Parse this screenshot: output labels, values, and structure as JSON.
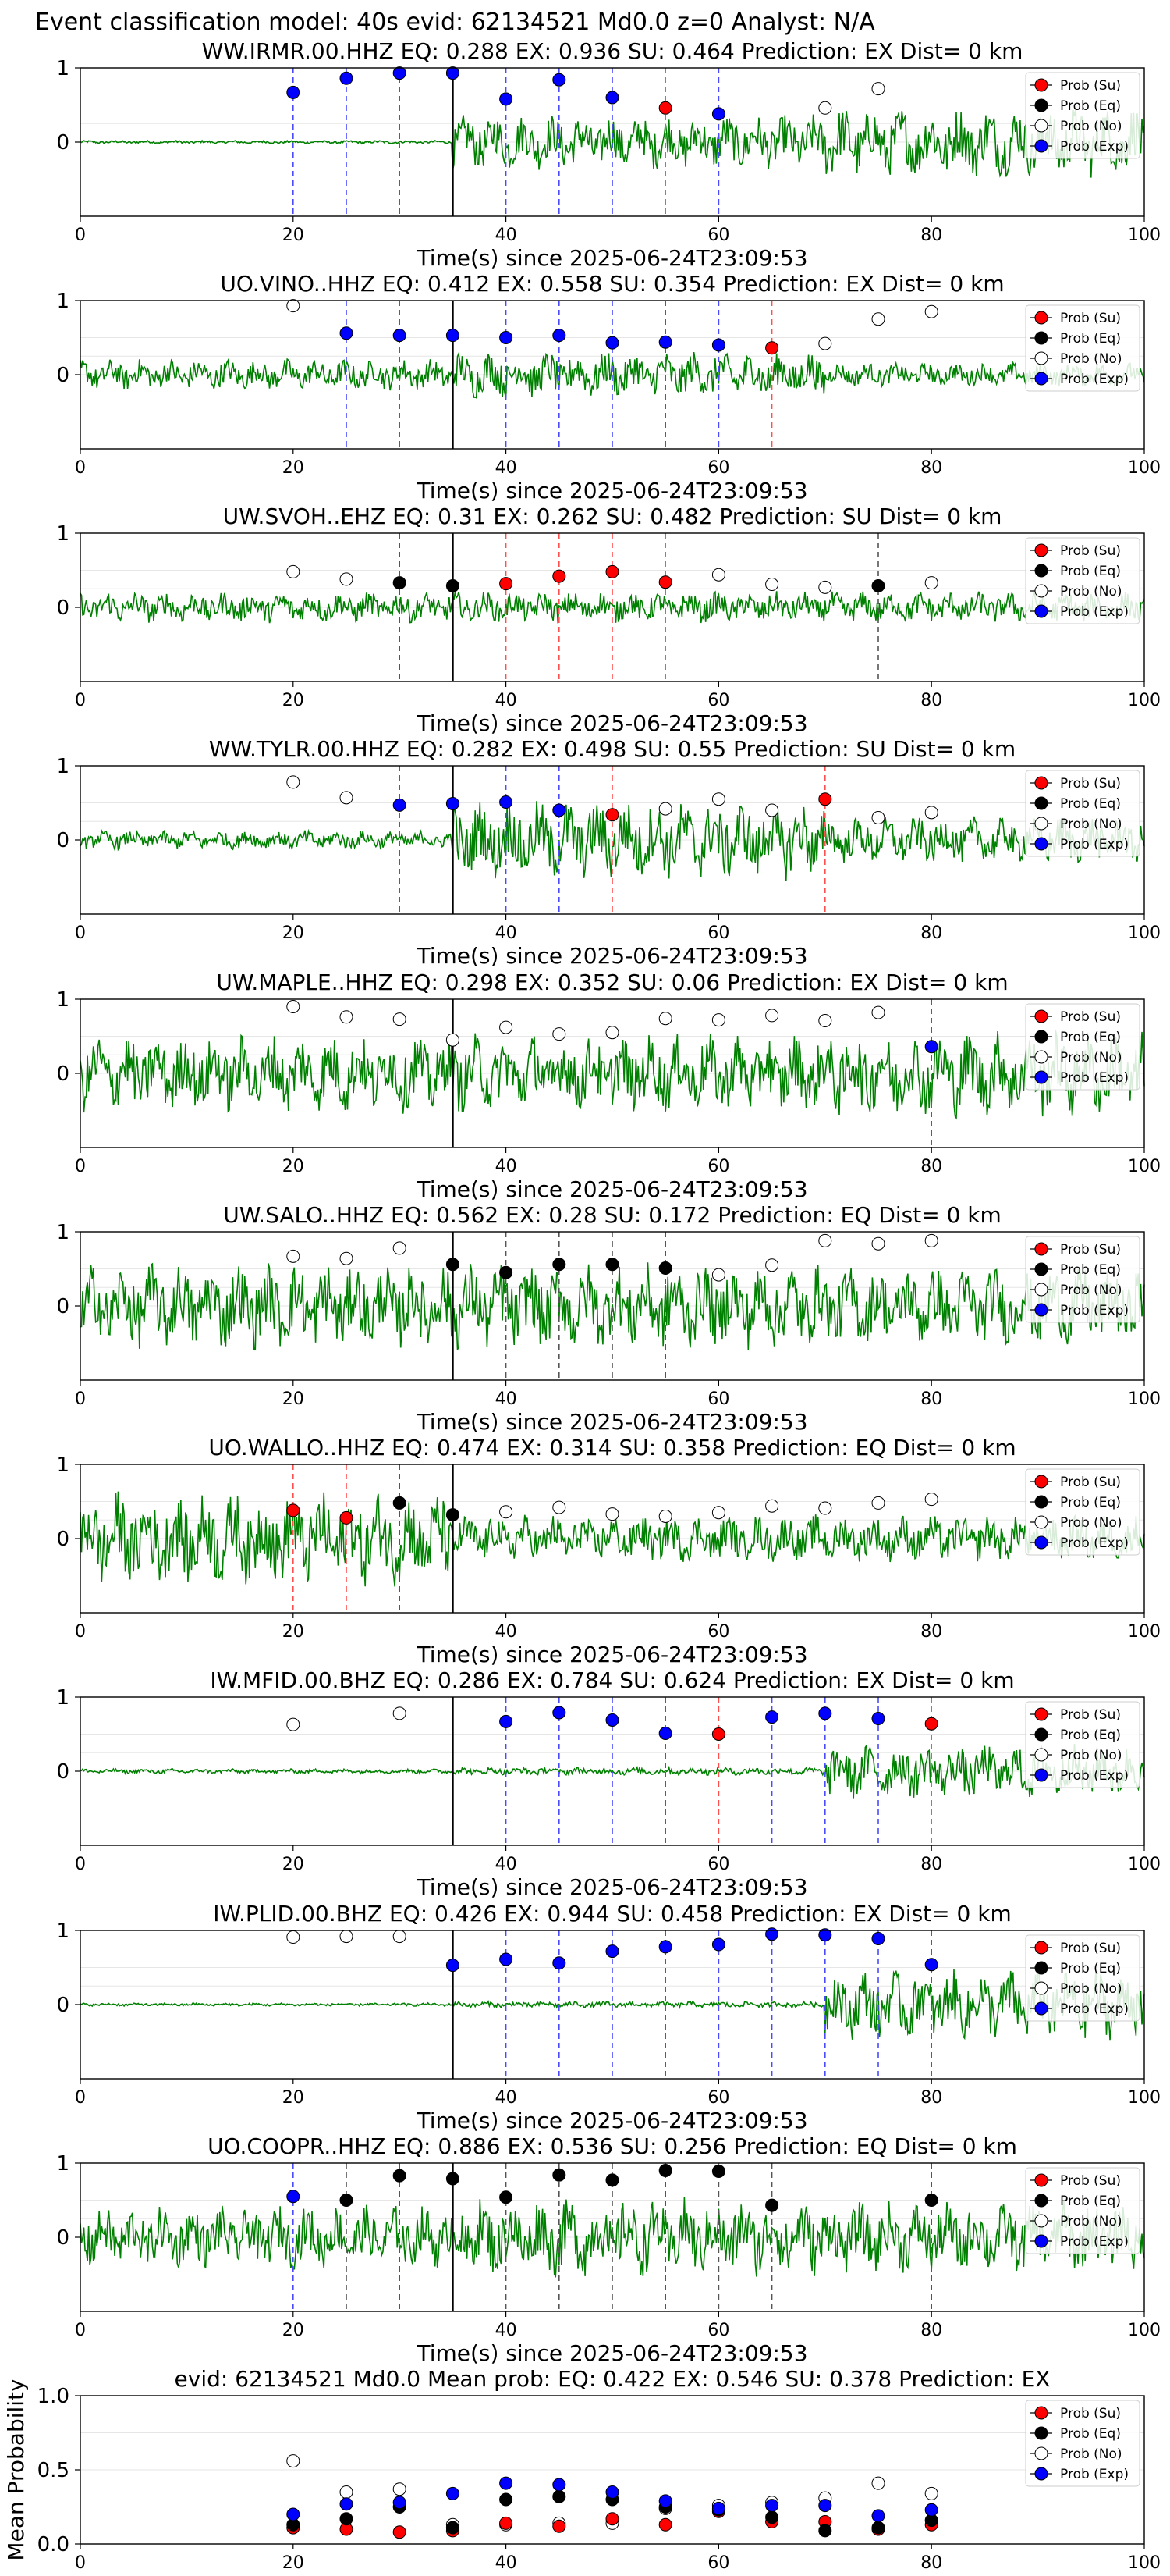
{
  "suptitle": "Event classification model: 40s evid: 62134521 Md0.0 z=0 Analyst: N/A",
  "legend": [
    "Prob (Su)",
    "Prob (Eq)",
    "Prob (No)",
    "Prob (Exp)"
  ],
  "colors": {
    "su": "#ff0000",
    "eq": "#000000",
    "no": "#ffffff",
    "exp": "#0000ff",
    "waveform": "#008000"
  },
  "xlabel": "Time(s) since 2025-06-24T23:09:53",
  "chart_data": [
    {
      "type": "line",
      "title": "WW.IRMR.00.HHZ   EQ: 0.288  EX: 0.936  SU: 0.464   Prediction: EX    Dist= 0 km",
      "xlim": [
        0,
        100
      ],
      "ylim": [
        -1,
        1
      ],
      "xticks": [
        0,
        20,
        40,
        60,
        80,
        100
      ],
      "yticks": [
        "1",
        "0"
      ],
      "xlabel": "Time(s) since 2025-06-24T23:09:53",
      "onset": 35,
      "amp": [
        0.02,
        0.35,
        0.45
      ],
      "points": [
        [
          20,
          "exp",
          0.67
        ],
        [
          25,
          "exp",
          0.86
        ],
        [
          30,
          "exp",
          0.93
        ],
        [
          35,
          "exp",
          0.93
        ],
        [
          40,
          "exp",
          0.58
        ],
        [
          45,
          "exp",
          0.84
        ],
        [
          50,
          "exp",
          0.6
        ],
        [
          55,
          "su",
          0.46
        ],
        [
          60,
          "exp",
          0.38
        ],
        [
          70,
          "no",
          0.46
        ],
        [
          75,
          "no",
          0.72
        ]
      ]
    },
    {
      "type": "line",
      "title": "UO.VINO..HHZ   EQ: 0.412  EX: 0.558  SU: 0.354   Prediction: EX    Dist= 0 km",
      "xlim": [
        0,
        100
      ],
      "ylim": [
        -1,
        1
      ],
      "xticks": [
        0,
        20,
        40,
        60,
        80,
        100
      ],
      "yticks": [
        "1",
        "0"
      ],
      "xlabel": "Time(s) since 2025-06-24T23:09:53",
      "onset": 35,
      "amp": [
        0.2,
        0.3,
        0.15
      ],
      "points": [
        [
          20,
          "no",
          0.93
        ],
        [
          25,
          "exp",
          0.56
        ],
        [
          30,
          "exp",
          0.53
        ],
        [
          35,
          "exp",
          0.53
        ],
        [
          40,
          "exp",
          0.5
        ],
        [
          45,
          "exp",
          0.53
        ],
        [
          50,
          "exp",
          0.43
        ],
        [
          55,
          "exp",
          0.44
        ],
        [
          60,
          "exp",
          0.4
        ],
        [
          65,
          "su",
          0.36
        ],
        [
          70,
          "no",
          0.42
        ],
        [
          75,
          "no",
          0.75
        ],
        [
          80,
          "no",
          0.85
        ]
      ]
    },
    {
      "type": "line",
      "title": "UW.SVOH..EHZ   EQ: 0.31  EX: 0.262  SU: 0.482   Prediction: SU    Dist= 0 km",
      "xlim": [
        0,
        100
      ],
      "ylim": [
        -1,
        1
      ],
      "xticks": [
        0,
        20,
        40,
        60,
        80,
        100
      ],
      "yticks": [
        "1",
        "0"
      ],
      "xlabel": "Time(s) since 2025-06-24T23:09:53",
      "onset": 35,
      "amp": [
        0.2,
        0.2,
        0.2
      ],
      "points": [
        [
          20,
          "no",
          0.48
        ],
        [
          25,
          "no",
          0.38
        ],
        [
          30,
          "eq",
          0.33
        ],
        [
          35,
          "eq",
          0.29
        ],
        [
          40,
          "su",
          0.32
        ],
        [
          45,
          "su",
          0.42
        ],
        [
          50,
          "su",
          0.48
        ],
        [
          55,
          "su",
          0.34
        ],
        [
          60,
          "no",
          0.44
        ],
        [
          65,
          "no",
          0.31
        ],
        [
          70,
          "no",
          0.27
        ],
        [
          75,
          "eq",
          0.29
        ],
        [
          80,
          "no",
          0.33
        ]
      ]
    },
    {
      "type": "line",
      "title": "WW.TYLR.00.HHZ   EQ: 0.282  EX: 0.498  SU: 0.55   Prediction: SU    Dist= 0 km",
      "xlim": [
        0,
        100
      ],
      "ylim": [
        -1,
        1
      ],
      "xticks": [
        0,
        20,
        40,
        60,
        80,
        100
      ],
      "yticks": [
        "1",
        "0"
      ],
      "xlabel": "Time(s) since 2025-06-24T23:09:53",
      "onset": 35,
      "amp": [
        0.12,
        0.5,
        0.3
      ],
      "points": [
        [
          20,
          "no",
          0.78
        ],
        [
          25,
          "no",
          0.57
        ],
        [
          30,
          "exp",
          0.47
        ],
        [
          35,
          "exp",
          0.49
        ],
        [
          40,
          "exp",
          0.51
        ],
        [
          45,
          "exp",
          0.4
        ],
        [
          50,
          "su",
          0.34
        ],
        [
          55,
          "no",
          0.42
        ],
        [
          60,
          "no",
          0.55
        ],
        [
          65,
          "no",
          0.4
        ],
        [
          70,
          "su",
          0.55
        ],
        [
          75,
          "no",
          0.3
        ],
        [
          80,
          "no",
          0.37
        ]
      ]
    },
    {
      "type": "line",
      "title": "UW.MAPLE..HHZ   EQ: 0.298  EX: 0.352  SU: 0.06   Prediction: EX    Dist= 0 km",
      "xlim": [
        0,
        100
      ],
      "ylim": [
        -1,
        1
      ],
      "xticks": [
        0,
        20,
        40,
        60,
        80,
        100
      ],
      "yticks": [
        "1",
        "0"
      ],
      "xlabel": "Time(s) since 2025-06-24T23:09:53",
      "onset": 35,
      "amp": [
        0.5,
        0.5,
        0.55
      ],
      "points": [
        [
          20,
          "no",
          0.9
        ],
        [
          25,
          "no",
          0.76
        ],
        [
          30,
          "no",
          0.73
        ],
        [
          35,
          "no",
          0.45
        ],
        [
          40,
          "no",
          0.62
        ],
        [
          45,
          "no",
          0.53
        ],
        [
          50,
          "no",
          0.55
        ],
        [
          55,
          "no",
          0.74
        ],
        [
          60,
          "no",
          0.72
        ],
        [
          65,
          "no",
          0.78
        ],
        [
          70,
          "no",
          0.71
        ],
        [
          75,
          "no",
          0.82
        ],
        [
          80,
          "exp",
          0.36
        ]
      ]
    },
    {
      "type": "line",
      "title": "UW.SALO..HHZ   EQ: 0.562  EX: 0.28  SU: 0.172   Prediction: EQ    Dist= 0 km",
      "xlim": [
        0,
        100
      ],
      "ylim": [
        -1,
        1
      ],
      "xticks": [
        0,
        20,
        40,
        60,
        80,
        100
      ],
      "yticks": [
        "1",
        "0"
      ],
      "xlabel": "Time(s) since 2025-06-24T23:09:53",
      "onset": 35,
      "amp": [
        0.55,
        0.55,
        0.5
      ],
      "points": [
        [
          20,
          "no",
          0.67
        ],
        [
          25,
          "no",
          0.64
        ],
        [
          30,
          "no",
          0.78
        ],
        [
          35,
          "eq",
          0.56
        ],
        [
          40,
          "eq",
          0.45
        ],
        [
          45,
          "eq",
          0.56
        ],
        [
          50,
          "eq",
          0.56
        ],
        [
          55,
          "eq",
          0.51
        ],
        [
          60,
          "no",
          0.42
        ],
        [
          65,
          "no",
          0.55
        ],
        [
          70,
          "no",
          0.88
        ],
        [
          75,
          "no",
          0.84
        ],
        [
          80,
          "no",
          0.88
        ]
      ]
    },
    {
      "type": "line",
      "title": "UO.WALLO..HHZ   EQ: 0.474  EX: 0.314  SU: 0.358   Prediction: EQ    Dist= 0 km",
      "xlim": [
        0,
        100
      ],
      "ylim": [
        -1,
        1
      ],
      "xticks": [
        0,
        20,
        40,
        60,
        80,
        100
      ],
      "yticks": [
        "1",
        "0"
      ],
      "xlabel": "Time(s) since 2025-06-24T23:09:53",
      "onset": 35,
      "amp": [
        0.6,
        0.3,
        0.3
      ],
      "points": [
        [
          20,
          "su",
          0.38
        ],
        [
          25,
          "su",
          0.28
        ],
        [
          30,
          "eq",
          0.48
        ],
        [
          35,
          "eq",
          0.32
        ],
        [
          40,
          "no",
          0.36
        ],
        [
          45,
          "no",
          0.42
        ],
        [
          50,
          "no",
          0.33
        ],
        [
          55,
          "no",
          0.3
        ],
        [
          60,
          "no",
          0.35
        ],
        [
          65,
          "no",
          0.44
        ],
        [
          70,
          "no",
          0.41
        ],
        [
          75,
          "no",
          0.48
        ],
        [
          80,
          "no",
          0.53
        ]
      ]
    },
    {
      "type": "line",
      "title": "IW.MFID.00.BHZ   EQ: 0.286  EX: 0.784  SU: 0.624   Prediction: EX    Dist= 0 km",
      "xlim": [
        0,
        100
      ],
      "ylim": [
        -1,
        1
      ],
      "xticks": [
        0,
        20,
        40,
        60,
        80,
        100
      ],
      "yticks": [
        "1",
        "0"
      ],
      "xlabel": "Time(s) since 2025-06-24T23:09:53",
      "onset": 35,
      "amp": [
        0.03,
        0.05,
        0.35
      ],
      "points": [
        [
          20,
          "no",
          0.63
        ],
        [
          30,
          "no",
          0.78
        ],
        [
          40,
          "exp",
          0.67
        ],
        [
          45,
          "exp",
          0.79
        ],
        [
          50,
          "exp",
          0.69
        ],
        [
          55,
          "exp",
          0.51
        ],
        [
          60,
          "su",
          0.5
        ],
        [
          65,
          "exp",
          0.73
        ],
        [
          70,
          "exp",
          0.78
        ],
        [
          75,
          "exp",
          0.71
        ],
        [
          80,
          "su",
          0.64
        ]
      ]
    },
    {
      "type": "line",
      "title": "IW.PLID.00.BHZ   EQ: 0.426  EX: 0.944  SU: 0.458   Prediction: EX    Dist= 0 km",
      "xlim": [
        0,
        100
      ],
      "ylim": [
        -1,
        1
      ],
      "xticks": [
        0,
        20,
        40,
        60,
        80,
        100
      ],
      "yticks": [
        "1",
        "0"
      ],
      "xlabel": "Time(s) since 2025-06-24T23:09:53",
      "onset": 35,
      "amp": [
        0.02,
        0.04,
        0.45
      ],
      "points": [
        [
          20,
          "no",
          0.91
        ],
        [
          25,
          "no",
          0.92
        ],
        [
          30,
          "no",
          0.92
        ],
        [
          35,
          "exp",
          0.53
        ],
        [
          40,
          "exp",
          0.61
        ],
        [
          45,
          "exp",
          0.56
        ],
        [
          50,
          "exp",
          0.72
        ],
        [
          55,
          "exp",
          0.78
        ],
        [
          60,
          "exp",
          0.81
        ],
        [
          65,
          "exp",
          0.95
        ],
        [
          70,
          "exp",
          0.94
        ],
        [
          75,
          "exp",
          0.89
        ],
        [
          80,
          "exp",
          0.54
        ]
      ]
    },
    {
      "type": "line",
      "title": "UO.COOPR..HHZ   EQ: 0.886  EX: 0.536  SU: 0.256   Prediction: EQ    Dist= 0 km",
      "xlim": [
        0,
        100
      ],
      "ylim": [
        -1,
        1
      ],
      "xticks": [
        0,
        20,
        40,
        60,
        80,
        100
      ],
      "yticks": [
        "1",
        "0"
      ],
      "xlabel": "Time(s) since 2025-06-24T23:09:53",
      "onset": 35,
      "amp": [
        0.4,
        0.5,
        0.45
      ],
      "points": [
        [
          20,
          "exp",
          0.55
        ],
        [
          25,
          "eq",
          0.5
        ],
        [
          30,
          "eq",
          0.83
        ],
        [
          35,
          "eq",
          0.79
        ],
        [
          40,
          "eq",
          0.54
        ],
        [
          45,
          "eq",
          0.84
        ],
        [
          50,
          "eq",
          0.77
        ],
        [
          55,
          "eq",
          0.9
        ],
        [
          60,
          "eq",
          0.89
        ],
        [
          65,
          "eq",
          0.43
        ],
        [
          80,
          "eq",
          0.5
        ]
      ]
    },
    {
      "type": "scatter",
      "title": "evid: 62134521  Md0.0   Mean prob:   EQ: 0.422  EX: 0.546  SU: 0.378   Prediction: EX",
      "xlim": [
        0,
        100
      ],
      "ylim": [
        0,
        1
      ],
      "xticks": [
        0,
        20,
        40,
        60,
        80,
        100
      ],
      "yticks": [
        "1.0",
        "0.5",
        "0.0"
      ],
      "ylabel": "Mean Probability",
      "x": [
        20,
        25,
        30,
        35,
        40,
        45,
        50,
        55,
        60,
        65,
        70,
        75,
        80
      ],
      "series": [
        {
          "name": "Prob (Su)",
          "values": [
            0.11,
            0.1,
            0.08,
            0.09,
            0.14,
            0.12,
            0.17,
            0.13,
            0.22,
            0.15,
            0.15,
            0.1,
            0.13
          ]
        },
        {
          "name": "Prob (Eq)",
          "values": [
            0.13,
            0.17,
            0.25,
            0.11,
            0.3,
            0.32,
            0.3,
            0.25,
            0.23,
            0.18,
            0.09,
            0.11,
            0.16
          ]
        },
        {
          "name": "Prob (No)",
          "values": [
            0.56,
            0.35,
            0.37,
            0.13,
            0.13,
            0.14,
            0.14,
            0.24,
            0.26,
            0.28,
            0.31,
            0.41,
            0.34
          ]
        },
        {
          "name": "Prob (Exp)",
          "values": [
            0.2,
            0.27,
            0.28,
            0.34,
            0.41,
            0.4,
            0.35,
            0.29,
            0.24,
            0.26,
            0.26,
            0.19,
            0.23
          ]
        }
      ]
    }
  ]
}
